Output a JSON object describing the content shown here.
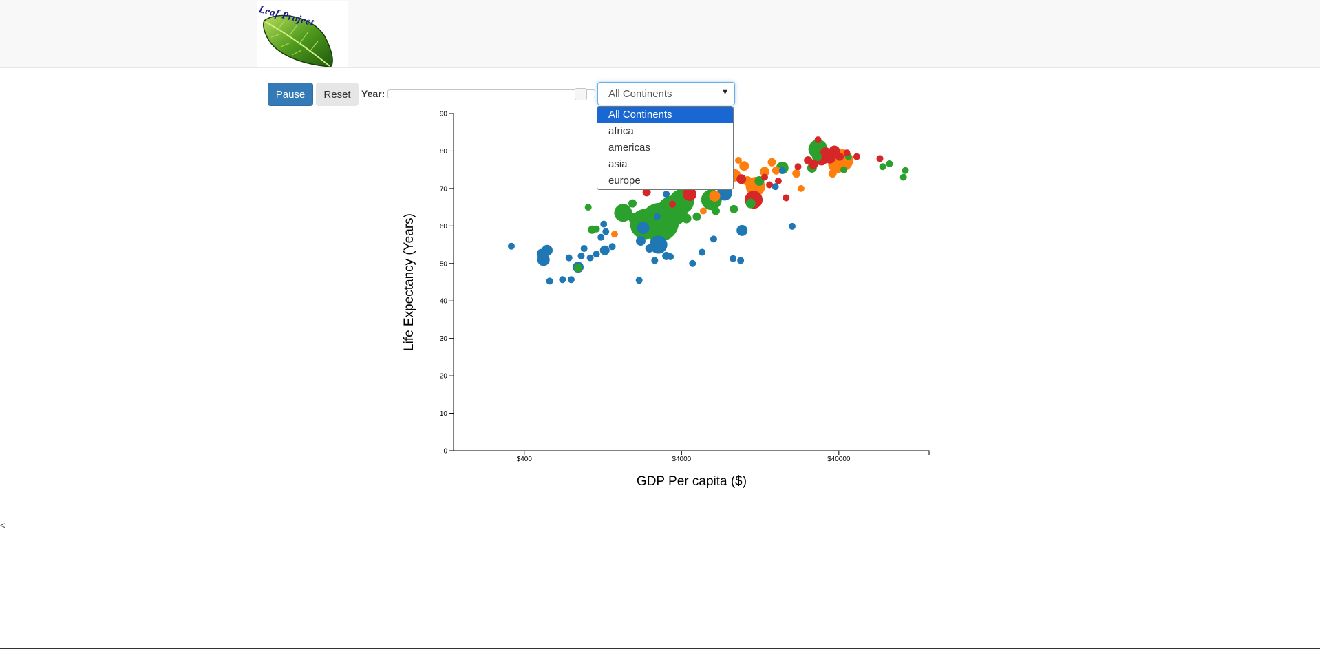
{
  "header": {
    "logo_text": "Leaf Project"
  },
  "controls": {
    "pause_label": "Pause",
    "reset_label": "Reset",
    "year_label": "Year:",
    "slider_position": 0.93,
    "continent_select": {
      "selected": "All Continents",
      "options": [
        "All Continents",
        "africa",
        "americas",
        "asia",
        "europe"
      ]
    }
  },
  "footer": {
    "stray_text": "<"
  },
  "colors": {
    "africa": "#1f77b4",
    "asia": "#2ca02c",
    "europe": "#d62728",
    "americas": "#ff7f0e",
    "primary_button": "#337ab7"
  },
  "chart_data": {
    "type": "scatter",
    "title": "",
    "xlabel": "GDP Per capita ($)",
    "ylabel": "Life Expectancy (Years)",
    "x_scale": "log",
    "xlim": [
      142,
      150000
    ],
    "ylim": [
      0,
      90
    ],
    "x_ticks": [
      {
        "value": 400,
        "label": "$400"
      },
      {
        "value": 4000,
        "label": "$4000"
      },
      {
        "value": 40000,
        "label": "$40000"
      }
    ],
    "y_ticks": [
      0,
      10,
      20,
      30,
      40,
      50,
      60,
      70,
      80,
      90
    ],
    "grid": false,
    "legend": "none",
    "points": [
      {
        "gdp": 331,
        "life": 54.6,
        "continent": "africa",
        "size": 5
      },
      {
        "gdp": 559,
        "life": 53.5,
        "continent": "africa",
        "size": 8
      },
      {
        "gdp": 515,
        "life": 52.6,
        "continent": "africa",
        "size": 7
      },
      {
        "gdp": 530,
        "life": 51.0,
        "continent": "africa",
        "size": 9
      },
      {
        "gdp": 580,
        "life": 45.3,
        "continent": "africa",
        "size": 5
      },
      {
        "gdp": 700,
        "life": 45.7,
        "continent": "africa",
        "size": 5
      },
      {
        "gdp": 795,
        "life": 45.7,
        "continent": "africa",
        "size": 5
      },
      {
        "gdp": 770,
        "life": 51.5,
        "continent": "africa",
        "size": 5
      },
      {
        "gdp": 880,
        "life": 49.0,
        "continent": "africa",
        "size": 8
      },
      {
        "gdp": 920,
        "life": 52.0,
        "continent": "africa",
        "size": 5
      },
      {
        "gdp": 960,
        "life": 54.0,
        "continent": "africa",
        "size": 5
      },
      {
        "gdp": 1050,
        "life": 51.5,
        "continent": "africa",
        "size": 5
      },
      {
        "gdp": 1150,
        "life": 52.5,
        "continent": "africa",
        "size": 5
      },
      {
        "gdp": 1300,
        "life": 53.5,
        "continent": "africa",
        "size": 7
      },
      {
        "gdp": 1450,
        "life": 54.5,
        "continent": "africa",
        "size": 5
      },
      {
        "gdp": 1230,
        "life": 57.0,
        "continent": "africa",
        "size": 5
      },
      {
        "gdp": 1320,
        "life": 58.5,
        "continent": "africa",
        "size": 5
      },
      {
        "gdp": 1280,
        "life": 60.5,
        "continent": "africa",
        "size": 5
      },
      {
        "gdp": 2150,
        "life": 45.5,
        "continent": "africa",
        "size": 5
      },
      {
        "gdp": 2200,
        "life": 56.0,
        "continent": "africa",
        "size": 7
      },
      {
        "gdp": 2280,
        "life": 59.5,
        "continent": "africa",
        "size": 9
      },
      {
        "gdp": 2500,
        "life": 54.0,
        "continent": "africa",
        "size": 6
      },
      {
        "gdp": 2700,
        "life": 50.8,
        "continent": "africa",
        "size": 5
      },
      {
        "gdp": 2850,
        "life": 55.0,
        "continent": "africa",
        "size": 13
      },
      {
        "gdp": 2800,
        "life": 62.5,
        "continent": "africa",
        "size": 5
      },
      {
        "gdp": 3200,
        "life": 52.0,
        "continent": "africa",
        "size": 6
      },
      {
        "gdp": 3400,
        "life": 51.8,
        "continent": "africa",
        "size": 5
      },
      {
        "gdp": 4700,
        "life": 50.0,
        "continent": "africa",
        "size": 5
      },
      {
        "gdp": 5400,
        "life": 53.0,
        "continent": "africa",
        "size": 5
      },
      {
        "gdp": 6400,
        "life": 56.5,
        "continent": "africa",
        "size": 5
      },
      {
        "gdp": 8500,
        "life": 51.3,
        "continent": "africa",
        "size": 5
      },
      {
        "gdp": 9500,
        "life": 50.8,
        "continent": "africa",
        "size": 5
      },
      {
        "gdp": 9700,
        "life": 58.8,
        "continent": "africa",
        "size": 8
      },
      {
        "gdp": 7500,
        "life": 68.8,
        "continent": "africa",
        "size": 11
      },
      {
        "gdp": 3200,
        "life": 68.5,
        "continent": "africa",
        "size": 5
      },
      {
        "gdp": 15800,
        "life": 70.5,
        "continent": "africa",
        "size": 5
      },
      {
        "gdp": 20200,
        "life": 59.9,
        "continent": "africa",
        "size": 5
      },
      {
        "gdp": 17500,
        "life": 74.8,
        "continent": "africa",
        "size": 5
      },
      {
        "gdp": 1020,
        "life": 65.0,
        "continent": "asia",
        "size": 5
      },
      {
        "gdp": 1080,
        "life": 59.0,
        "continent": "asia",
        "size": 6
      },
      {
        "gdp": 1150,
        "life": 59.2,
        "continent": "asia",
        "size": 5
      },
      {
        "gdp": 880,
        "life": 48.8,
        "continent": "asia",
        "size": 6
      },
      {
        "gdp": 1700,
        "life": 63.5,
        "continent": "asia",
        "size": 13
      },
      {
        "gdp": 1950,
        "life": 66.0,
        "continent": "asia",
        "size": 6
      },
      {
        "gdp": 2000,
        "life": 62.0,
        "continent": "asia",
        "size": 8
      },
      {
        "gdp": 2350,
        "life": 60.5,
        "continent": "asia",
        "size": 22
      },
      {
        "gdp": 2900,
        "life": 61.0,
        "continent": "asia",
        "size": 28
      },
      {
        "gdp": 3500,
        "life": 64.0,
        "continent": "asia",
        "size": 22
      },
      {
        "gdp": 4300,
        "life": 62.0,
        "continent": "asia",
        "size": 7
      },
      {
        "gdp": 5000,
        "life": 62.5,
        "continent": "asia",
        "size": 6
      },
      {
        "gdp": 4000,
        "life": 66.5,
        "continent": "asia",
        "size": 18
      },
      {
        "gdp": 6200,
        "life": 67.0,
        "continent": "asia",
        "size": 15
      },
      {
        "gdp": 6600,
        "life": 64.0,
        "continent": "asia",
        "size": 6
      },
      {
        "gdp": 8600,
        "life": 64.5,
        "continent": "asia",
        "size": 6
      },
      {
        "gdp": 11000,
        "life": 66.0,
        "continent": "asia",
        "size": 7
      },
      {
        "gdp": 12500,
        "life": 72.0,
        "continent": "asia",
        "size": 7
      },
      {
        "gdp": 17500,
        "life": 75.5,
        "continent": "asia",
        "size": 9
      },
      {
        "gdp": 27000,
        "life": 75.5,
        "continent": "asia",
        "size": 7
      },
      {
        "gdp": 29500,
        "life": 80.5,
        "continent": "asia",
        "size": 14
      },
      {
        "gdp": 29000,
        "life": 78.5,
        "continent": "asia",
        "size": 7
      },
      {
        "gdp": 43000,
        "life": 75.0,
        "continent": "asia",
        "size": 5
      },
      {
        "gdp": 46000,
        "life": 78.5,
        "continent": "asia",
        "size": 5
      },
      {
        "gdp": 76000,
        "life": 75.8,
        "continent": "asia",
        "size": 5
      },
      {
        "gdp": 84000,
        "life": 76.6,
        "continent": "asia",
        "size": 5
      },
      {
        "gdp": 103000,
        "life": 73.0,
        "continent": "asia",
        "size": 5
      },
      {
        "gdp": 106000,
        "life": 74.8,
        "continent": "asia",
        "size": 5
      },
      {
        "gdp": 1500,
        "life": 57.8,
        "continent": "americas",
        "size": 5
      },
      {
        "gdp": 5500,
        "life": 64.0,
        "continent": "americas",
        "size": 5
      },
      {
        "gdp": 6500,
        "life": 68.0,
        "continent": "americas",
        "size": 8
      },
      {
        "gdp": 8700,
        "life": 73.5,
        "continent": "americas",
        "size": 9
      },
      {
        "gdp": 9200,
        "life": 77.5,
        "continent": "americas",
        "size": 5
      },
      {
        "gdp": 10000,
        "life": 76.0,
        "continent": "americas",
        "size": 7
      },
      {
        "gdp": 10500,
        "life": 72.0,
        "continent": "americas",
        "size": 7
      },
      {
        "gdp": 11800,
        "life": 70.5,
        "continent": "americas",
        "size": 14
      },
      {
        "gdp": 13500,
        "life": 74.5,
        "continent": "americas",
        "size": 7
      },
      {
        "gdp": 15000,
        "life": 77.0,
        "continent": "americas",
        "size": 6
      },
      {
        "gdp": 16000,
        "life": 74.8,
        "continent": "americas",
        "size": 6
      },
      {
        "gdp": 21500,
        "life": 74.0,
        "continent": "americas",
        "size": 6
      },
      {
        "gdp": 23000,
        "life": 70.0,
        "continent": "americas",
        "size": 5
      },
      {
        "gdp": 39000,
        "life": 76.5,
        "continent": "americas",
        "size": 13
      },
      {
        "gdp": 42000,
        "life": 77.5,
        "continent": "americas",
        "size": 16
      },
      {
        "gdp": 36500,
        "life": 74.0,
        "continent": "americas",
        "size": 6
      },
      {
        "gdp": 4500,
        "life": 68.5,
        "continent": "europe",
        "size": 10
      },
      {
        "gdp": 3500,
        "life": 65.8,
        "continent": "europe",
        "size": 5
      },
      {
        "gdp": 2400,
        "life": 69.0,
        "continent": "europe",
        "size": 6
      },
      {
        "gdp": 9600,
        "life": 72.5,
        "continent": "europe",
        "size": 7
      },
      {
        "gdp": 11500,
        "life": 67.0,
        "continent": "europe",
        "size": 13
      },
      {
        "gdp": 13500,
        "life": 73.0,
        "continent": "europe",
        "size": 5
      },
      {
        "gdp": 14500,
        "life": 71.0,
        "continent": "europe",
        "size": 5
      },
      {
        "gdp": 16500,
        "life": 72.0,
        "continent": "europe",
        "size": 5
      },
      {
        "gdp": 18500,
        "life": 67.5,
        "continent": "europe",
        "size": 5
      },
      {
        "gdp": 22000,
        "life": 75.8,
        "continent": "europe",
        "size": 5
      },
      {
        "gdp": 25500,
        "life": 77.5,
        "continent": "europe",
        "size": 6
      },
      {
        "gdp": 27500,
        "life": 76.5,
        "continent": "europe",
        "size": 7
      },
      {
        "gdp": 31000,
        "life": 78.0,
        "continent": "europe",
        "size": 10
      },
      {
        "gdp": 33000,
        "life": 79.5,
        "continent": "europe",
        "size": 8
      },
      {
        "gdp": 29500,
        "life": 83.0,
        "continent": "europe",
        "size": 5
      },
      {
        "gdp": 35000,
        "life": 78.3,
        "continent": "europe",
        "size": 9
      },
      {
        "gdp": 37500,
        "life": 80.0,
        "continent": "europe",
        "size": 8
      },
      {
        "gdp": 40500,
        "life": 78.5,
        "continent": "europe",
        "size": 6
      },
      {
        "gdp": 45000,
        "life": 79.5,
        "continent": "europe",
        "size": 5
      },
      {
        "gdp": 52000,
        "life": 78.5,
        "continent": "europe",
        "size": 5
      },
      {
        "gdp": 73000,
        "life": 78.0,
        "continent": "europe",
        "size": 5
      }
    ]
  }
}
